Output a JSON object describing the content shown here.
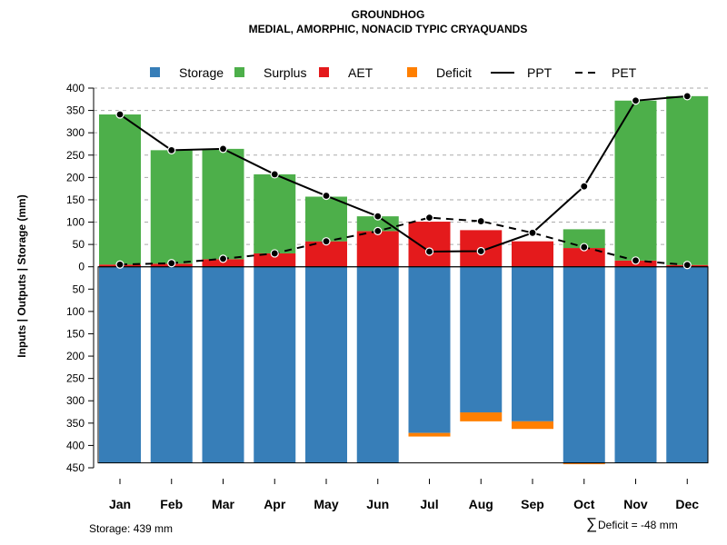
{
  "title": "GROUNDHOG",
  "subtitle": "MEDIAL, AMORPHIC, NONACID TYPIC CRYAQUANDS",
  "footer": {
    "storage_label": "Storage: 439 mm",
    "deficit_symbol": "∑",
    "deficit_label": "Deficit = -48 mm"
  },
  "colors": {
    "storage": "#377eb8",
    "surplus": "#4daf4a",
    "aet": "#e41a1c",
    "deficit": "#ff7f00",
    "line": "#000000",
    "grid": "#aaaaaa"
  },
  "legend": [
    {
      "key": "storage",
      "label": "Storage",
      "kind": "box"
    },
    {
      "key": "surplus",
      "label": "Surplus",
      "kind": "box"
    },
    {
      "key": "aet",
      "label": "AET",
      "kind": "box"
    },
    {
      "key": "deficit",
      "label": "Deficit",
      "kind": "box"
    },
    {
      "key": "ppt",
      "label": "PPT",
      "kind": "solid"
    },
    {
      "key": "pet",
      "label": "PET",
      "kind": "dashed"
    }
  ],
  "chart_data": {
    "type": "bar",
    "title": "GROUNDHOG",
    "subtitle": "MEDIAL, AMORPHIC, NONACID TYPIC CRYAQUANDS",
    "ylabel": "Inputs | Outputs | Storage    (mm)",
    "ylim": [
      -450,
      400
    ],
    "y_ticks": [
      400,
      350,
      300,
      250,
      200,
      150,
      100,
      50,
      0,
      -50,
      -100,
      -150,
      -200,
      -250,
      -300,
      -350,
      -400,
      -450
    ],
    "y_tick_labels": [
      "400",
      "350",
      "300",
      "250",
      "200",
      "150",
      "100",
      "50",
      "0",
      "50",
      "100",
      "150",
      "200",
      "250",
      "300",
      "350",
      "400",
      "450"
    ],
    "categories": [
      "Jan",
      "Feb",
      "Mar",
      "Apr",
      "May",
      "Jun",
      "Jul",
      "Aug",
      "Sep",
      "Oct",
      "Nov",
      "Dec"
    ],
    "series": [
      {
        "name": "AET",
        "key": "aet",
        "values": [
          5,
          7,
          17,
          30,
          57,
          80,
          101,
          82,
          57,
          42,
          14,
          4
        ]
      },
      {
        "name": "Surplus",
        "key": "surplus",
        "values": [
          336,
          254,
          247,
          177,
          100,
          33,
          0,
          0,
          0,
          42,
          358,
          378
        ]
      },
      {
        "name": "Storage",
        "key": "storage",
        "values": [
          439,
          439,
          439,
          439,
          439,
          439,
          372,
          326,
          346,
          439,
          439,
          439
        ]
      },
      {
        "name": "Deficit",
        "key": "deficit",
        "values": [
          0,
          0,
          0,
          0,
          0,
          0,
          8,
          20,
          17,
          3,
          0,
          0
        ]
      },
      {
        "name": "PPT",
        "key": "ppt",
        "values": [
          341,
          261,
          264,
          207,
          159,
          113,
          34,
          35,
          76,
          180,
          372,
          382
        ]
      },
      {
        "name": "PET",
        "key": "pet",
        "values": [
          5,
          8,
          18,
          30,
          57,
          80,
          110,
          102,
          76,
          44,
          14,
          4
        ]
      }
    ]
  }
}
